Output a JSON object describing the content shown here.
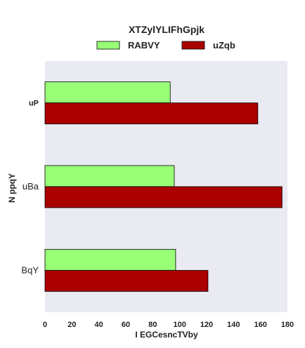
{
  "chart_data": {
    "type": "bar",
    "orientation": "horizontal",
    "title": "XTZylYLIFhGpjk",
    "xlabel": "I EGCesncTVby",
    "ylabel": "N ppqY",
    "categories": [
      "uP",
      "uBa",
      "BqY"
    ],
    "series": [
      {
        "name": "RABVY",
        "values": [
          93,
          96,
          97
        ],
        "color": "#99ff77"
      },
      {
        "name": "uZqb",
        "values": [
          158,
          176,
          121
        ],
        "color": "#aa0000"
      }
    ],
    "xlim": [
      0,
      180
    ],
    "xticks": [
      "0",
      "20",
      "40",
      "60",
      "80",
      "100",
      "120",
      "140",
      "160",
      "180"
    ],
    "grid": false,
    "legend_position": "top",
    "background": "#eaeaf2"
  }
}
